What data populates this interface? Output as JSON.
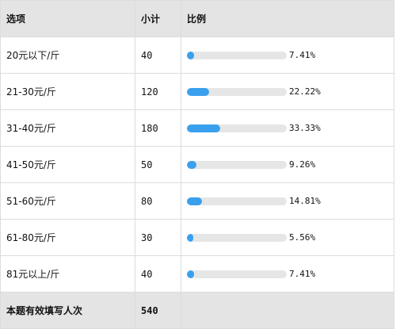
{
  "header": {
    "option": "选项",
    "count": "小计",
    "ratio": "比例"
  },
  "rows": [
    {
      "label": "20元以下/斤",
      "count": "40",
      "percent_text": "7.41%",
      "percent": 7.41
    },
    {
      "label": "21-30元/斤",
      "count": "120",
      "percent_text": "22.22%",
      "percent": 22.22
    },
    {
      "label": "31-40元/斤",
      "count": "180",
      "percent_text": "33.33%",
      "percent": 33.33
    },
    {
      "label": "41-50元/斤",
      "count": "50",
      "percent_text": "9.26%",
      "percent": 9.26
    },
    {
      "label": "51-60元/斤",
      "count": "80",
      "percent_text": "14.81%",
      "percent": 14.81
    },
    {
      "label": "61-80元/斤",
      "count": "30",
      "percent_text": "5.56%",
      "percent": 5.56
    },
    {
      "label": "81元以上/斤",
      "count": "40",
      "percent_text": "7.41%",
      "percent": 7.41
    }
  ],
  "footer": {
    "label": "本题有效填写人次",
    "total": "540"
  },
  "colors": {
    "bar_fill": "#3aa0ee",
    "bar_track": "#e6e6e6",
    "header_bg": "#e4e4e4"
  }
}
